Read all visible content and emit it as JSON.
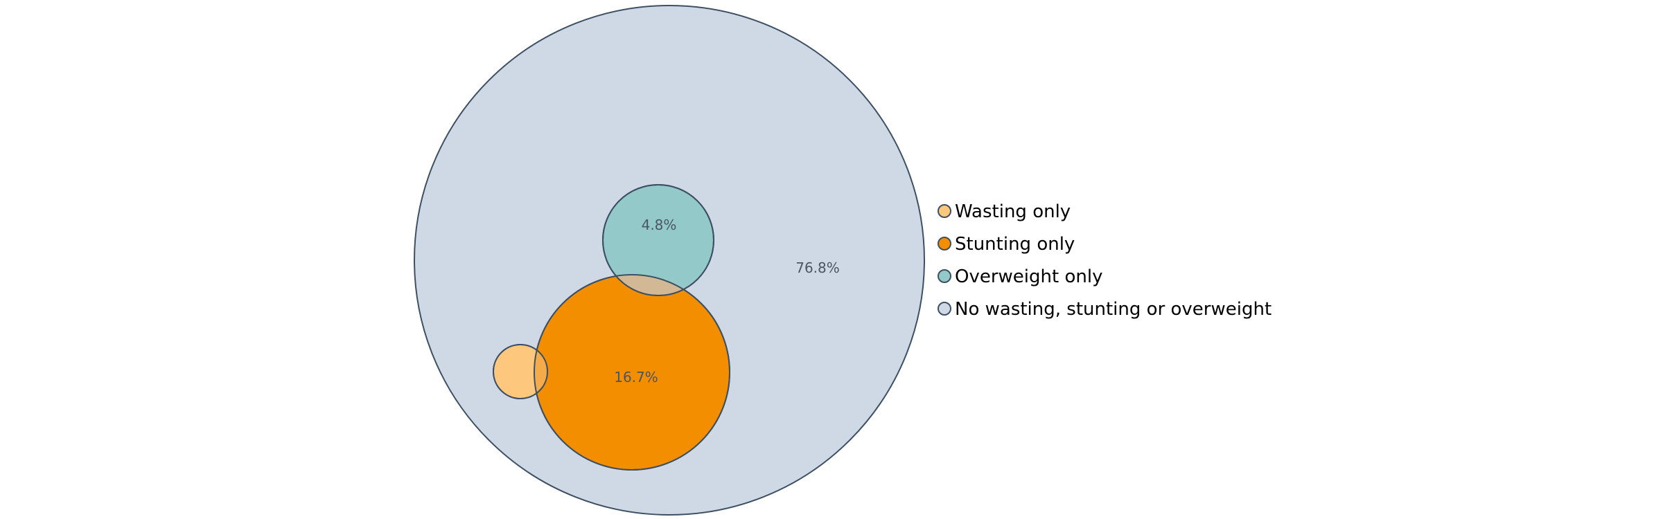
{
  "chart_data": {
    "type": "venn-bubble",
    "title": "",
    "series": [
      {
        "name": "No wasting, stunting or overweight",
        "value": 76.8,
        "value_label": "76.8%",
        "color": "#cfd9e5"
      },
      {
        "name": "Stunting only",
        "value": 16.7,
        "value_label": "16.7%",
        "color": "#f28e00"
      },
      {
        "name": "Overweight only",
        "value": 4.8,
        "value_label": "4.8%",
        "color": "#93cac9"
      },
      {
        "name": "Wasting only",
        "value": null,
        "value_label": "",
        "color": "#fdc87d"
      }
    ],
    "overlaps": [
      {
        "sets": [
          "Stunting only",
          "Overweight only"
        ],
        "color": "#d3b896"
      },
      {
        "sets": [
          "Wasting only",
          "Stunting only"
        ],
        "color": "#f5ab4a"
      }
    ],
    "stroke_color": "#3d4f63",
    "legend": {
      "position": "right",
      "items": [
        {
          "label": "Wasting only",
          "color": "#fdc87d"
        },
        {
          "label": "Stunting only",
          "color": "#f28e00"
        },
        {
          "label": "Overweight only",
          "color": "#93cac9"
        },
        {
          "label": "No wasting, stunting or overweight",
          "color": "#cfd9e5"
        }
      ]
    }
  }
}
